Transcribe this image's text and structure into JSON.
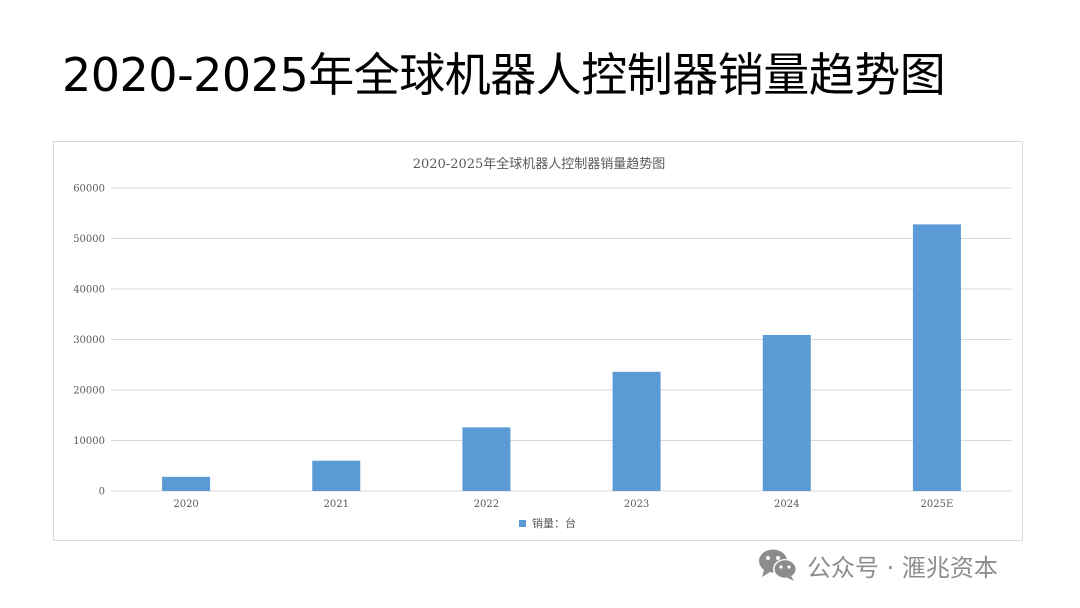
{
  "slide": {
    "title": "2020-2025年全球机器人控制器销量趋势图"
  },
  "watermark": {
    "text": "公众号 · 滙兆资本",
    "icon": "wechat-icon"
  },
  "colors": {
    "bar": "#5b9bd5",
    "grid": "#d9d9d9",
    "text": "#595959"
  },
  "chart_data": {
    "type": "bar",
    "title": "2020-2025年全球机器人控制器销量趋势图",
    "categories": [
      "2020",
      "2021",
      "2022",
      "2023",
      "2024",
      "2025E"
    ],
    "series": [
      {
        "name": "销量：台",
        "values": [
          2800,
          6000,
          12600,
          23600,
          30900,
          52800
        ]
      }
    ],
    "xlabel": "",
    "ylabel": "",
    "ylim": [
      0,
      60000
    ],
    "yticks": [
      "0",
      "10000",
      "20000",
      "30000",
      "40000",
      "50000",
      "60000"
    ],
    "grid": true,
    "legend_position": "bottom"
  }
}
